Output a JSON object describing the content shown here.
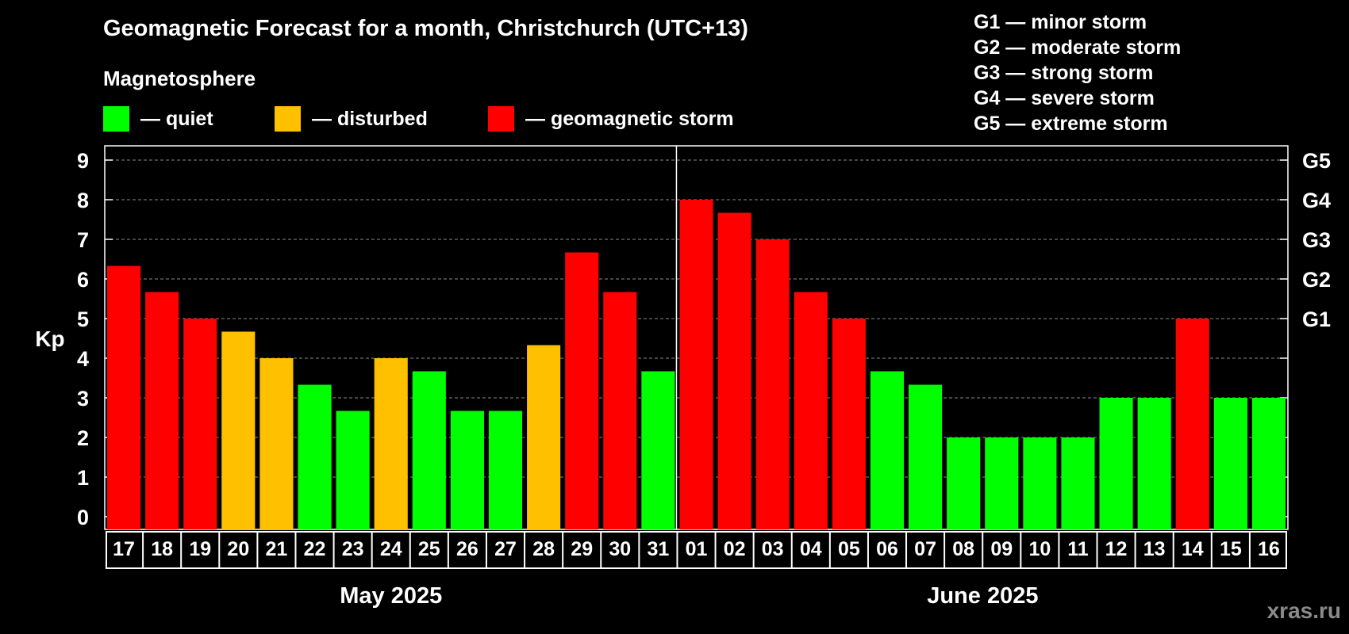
{
  "title": "Geomagnetic Forecast for a month, Christchurch (UTC+13)",
  "legend": {
    "heading": "Magnetosphere",
    "items": [
      {
        "label": "— quiet",
        "color": "#00ff00"
      },
      {
        "label": "— disturbed",
        "color": "#ffc000"
      },
      {
        "label": "— geomagnetic storm",
        "color": "#ff0000"
      }
    ]
  },
  "storm_legend": [
    "G1 — minor storm",
    "G2 — moderate storm",
    "G3 — strong storm",
    "G4 — severe storm",
    "G5 — extreme storm"
  ],
  "watermark": "xras.ru",
  "chart_data": {
    "type": "bar",
    "ylabel": "Kp",
    "ylim": [
      0,
      9
    ],
    "yticks": [
      0,
      1,
      2,
      3,
      4,
      5,
      6,
      7,
      8,
      9
    ],
    "right_ticks": [
      {
        "value": 5,
        "label": "G1"
      },
      {
        "value": 6,
        "label": "G2"
      },
      {
        "value": 7,
        "label": "G3"
      },
      {
        "value": 8,
        "label": "G4"
      },
      {
        "value": 9,
        "label": "G5"
      }
    ],
    "grid": true,
    "categories": [
      "17",
      "18",
      "19",
      "20",
      "21",
      "22",
      "23",
      "24",
      "25",
      "26",
      "27",
      "28",
      "29",
      "30",
      "31",
      "01",
      "02",
      "03",
      "04",
      "05",
      "06",
      "07",
      "08",
      "09",
      "10",
      "11",
      "12",
      "13",
      "14",
      "15",
      "16"
    ],
    "values": [
      6.33,
      5.67,
      5.0,
      4.67,
      4.0,
      3.33,
      2.67,
      4.0,
      3.67,
      2.67,
      2.67,
      4.33,
      6.67,
      5.67,
      3.67,
      8.0,
      7.67,
      7.0,
      5.67,
      5.0,
      3.67,
      3.33,
      2.0,
      2.0,
      2.0,
      2.0,
      3.0,
      3.0,
      5.0,
      3.0,
      3.0
    ],
    "status": [
      "storm",
      "storm",
      "storm",
      "disturbed",
      "disturbed",
      "quiet",
      "quiet",
      "disturbed",
      "quiet",
      "quiet",
      "quiet",
      "disturbed",
      "storm",
      "storm",
      "quiet",
      "storm",
      "storm",
      "storm",
      "storm",
      "storm",
      "quiet",
      "quiet",
      "quiet",
      "quiet",
      "quiet",
      "quiet",
      "quiet",
      "quiet",
      "storm",
      "quiet",
      "quiet"
    ],
    "colors": {
      "quiet": "#00ff00",
      "disturbed": "#ffc000",
      "storm": "#ff0000"
    },
    "months": [
      {
        "label": "May 2025",
        "start": 0,
        "end": 14
      },
      {
        "label": "June 2025",
        "start": 15,
        "end": 30
      }
    ]
  }
}
